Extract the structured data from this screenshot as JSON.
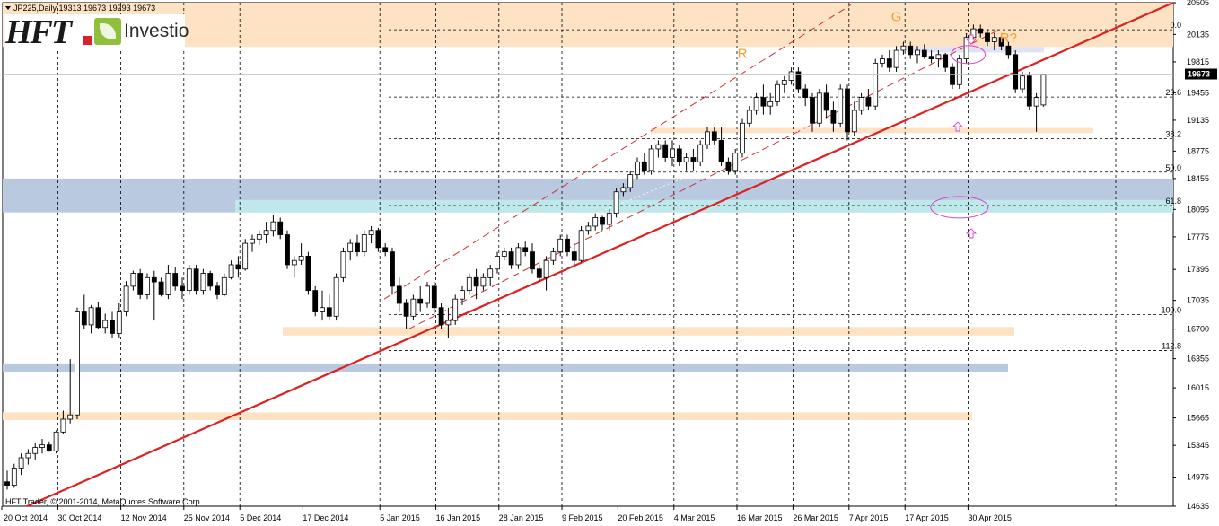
{
  "header": {
    "symbol_line": "JP225,Daily  19313 19673 19293 19673"
  },
  "logo": {
    "mark": "HFT",
    "brand": "Investio"
  },
  "footer": {
    "copyright": "HFT Trader, © 2001-2014, MetaQuotes Software Corp."
  },
  "colors": {
    "bull_body": "#ffffff",
    "bear_body": "#000000",
    "wick": "#000000",
    "trendline": "#e02020",
    "channel": "#d03030",
    "zone_orange": "#fde2c4",
    "zone_blue": "#b8c9e0",
    "zone_cyan": "#bfe8ea",
    "ellipse": "#e040c8",
    "annotation": "#f0a030",
    "grid": "#000000"
  },
  "chart_data": {
    "type": "candlestick",
    "y_axis": {
      "range": [
        14635,
        20505
      ],
      "ticks": [
        "20505",
        "20135",
        "19815",
        "19455",
        "19135",
        "18775",
        "18455",
        "18095",
        "17775",
        "17395",
        "17035",
        "16700",
        "16355",
        "16015",
        "15665",
        "15345",
        "14975",
        "14635"
      ]
    },
    "last_price": "19673",
    "x_axis": {
      "tick_labels": [
        "20 Oct 2014",
        "30 Oct 2014",
        "12 Nov 2014",
        "25 Nov 2014",
        "5 Dec 2014",
        "17 Dec 2014",
        "5 Jan 2015",
        "16 Jan 2015",
        "28 Jan 2015",
        "9 Feb 2015",
        "20 Feb 2015",
        "4 Mar 2015",
        "16 Mar 2015",
        "26 Mar 2015",
        "7 Apr 2015",
        "17 Apr 2015",
        "30 Apr 2015"
      ],
      "tick_bars": [
        0,
        8,
        17,
        26,
        34,
        43,
        54,
        62,
        71,
        80,
        88,
        96,
        105,
        113,
        121,
        129,
        138
      ]
    },
    "candles": [
      [
        14920,
        15050,
        14830,
        14880
      ],
      [
        14880,
        15130,
        14850,
        15080
      ],
      [
        15080,
        15250,
        15000,
        15200
      ],
      [
        15200,
        15300,
        15120,
        15250
      ],
      [
        15250,
        15380,
        15180,
        15320
      ],
      [
        15320,
        15420,
        15250,
        15350
      ],
      [
        15350,
        15390,
        15270,
        15280
      ],
      [
        15280,
        15520,
        15250,
        15500
      ],
      [
        15500,
        15750,
        15480,
        15650
      ],
      [
        15650,
        16350,
        15600,
        15700
      ],
      [
        15700,
        16950,
        15650,
        16900
      ],
      [
        16900,
        17100,
        16700,
        16750
      ],
      [
        16750,
        16980,
        16650,
        16950
      ],
      [
        16950,
        17020,
        16700,
        16720
      ],
      [
        16720,
        16880,
        16650,
        16800
      ],
      [
        16800,
        16900,
        16600,
        16650
      ],
      [
        16650,
        17000,
        16600,
        16900
      ],
      [
        16900,
        17260,
        16850,
        17200
      ],
      [
        17200,
        17380,
        17150,
        17350
      ],
      [
        17350,
        17400,
        17050,
        17100
      ],
      [
        17100,
        17350,
        17050,
        17300
      ],
      [
        17300,
        17380,
        16800,
        17250
      ],
      [
        17250,
        17300,
        17080,
        17100
      ],
      [
        17100,
        17450,
        17050,
        17350
      ],
      [
        17350,
        17420,
        17150,
        17200
      ],
      [
        17200,
        17300,
        17050,
        17150
      ],
      [
        17150,
        17450,
        17100,
        17400
      ],
      [
        17400,
        17450,
        17100,
        17150
      ],
      [
        17150,
        17400,
        17100,
        17350
      ],
      [
        17350,
        17380,
        17150,
        17200
      ],
      [
        17200,
        17250,
        17050,
        17100
      ],
      [
        17100,
        17350,
        17080,
        17300
      ],
      [
        17300,
        17500,
        17280,
        17450
      ],
      [
        17450,
        17550,
        17300,
        17400
      ],
      [
        17400,
        17750,
        17380,
        17700
      ],
      [
        17700,
        17800,
        17600,
        17750
      ],
      [
        17750,
        17850,
        17680,
        17800
      ],
      [
        17800,
        17950,
        17700,
        17850
      ],
      [
        17850,
        18030,
        17780,
        17950
      ],
      [
        17950,
        18000,
        17750,
        17800
      ],
      [
        17800,
        17850,
        17400,
        17450
      ],
      [
        17450,
        17550,
        17300,
        17500
      ],
      [
        17500,
        17700,
        17450,
        17550
      ],
      [
        17550,
        17600,
        17100,
        17150
      ],
      [
        17150,
        17200,
        16850,
        16900
      ],
      [
        16900,
        17150,
        16800,
        16950
      ],
      [
        16950,
        17100,
        16800,
        16850
      ],
      [
        16850,
        17350,
        16800,
        17300
      ],
      [
        17300,
        17650,
        17250,
        17600
      ],
      [
        17600,
        17750,
        17500,
        17700
      ],
      [
        17700,
        17800,
        17550,
        17600
      ],
      [
        17600,
        17850,
        17550,
        17800
      ],
      [
        17800,
        17900,
        17700,
        17850
      ],
      [
        17850,
        17880,
        17600,
        17650
      ],
      [
        17650,
        17700,
        17550,
        17600
      ],
      [
        17600,
        17650,
        17100,
        17200
      ],
      [
        17200,
        17300,
        16900,
        17000
      ],
      [
        17000,
        17050,
        16700,
        16850
      ],
      [
        16850,
        17100,
        16800,
        17050
      ],
      [
        17050,
        17200,
        16900,
        17000
      ],
      [
        17000,
        17250,
        16950,
        17200
      ],
      [
        17200,
        17250,
        16880,
        16950
      ],
      [
        16950,
        17000,
        16700,
        16750
      ],
      [
        16750,
        16950,
        16600,
        16800
      ],
      [
        16800,
        17100,
        16750,
        17050
      ],
      [
        17050,
        17200,
        16980,
        17150
      ],
      [
        17150,
        17350,
        17100,
        17300
      ],
      [
        17300,
        17400,
        17050,
        17200
      ],
      [
        17200,
        17350,
        17150,
        17300
      ],
      [
        17300,
        17450,
        17200,
        17400
      ],
      [
        17400,
        17600,
        17350,
        17550
      ],
      [
        17550,
        17650,
        17500,
        17600
      ],
      [
        17600,
        17650,
        17400,
        17450
      ],
      [
        17450,
        17700,
        17400,
        17650
      ],
      [
        17650,
        17720,
        17550,
        17600
      ],
      [
        17600,
        17700,
        17350,
        17400
      ],
      [
        17400,
        17450,
        17250,
        17300
      ],
      [
        17300,
        17550,
        17150,
        17500
      ],
      [
        17500,
        17650,
        17450,
        17600
      ],
      [
        17600,
        17800,
        17550,
        17750
      ],
      [
        17750,
        17800,
        17550,
        17600
      ],
      [
        17600,
        17700,
        17450,
        17500
      ],
      [
        17500,
        17900,
        17480,
        17850
      ],
      [
        17850,
        17950,
        17800,
        17900
      ],
      [
        17900,
        18050,
        17850,
        18000
      ],
      [
        18000,
        18020,
        17850,
        17920
      ],
      [
        17920,
        18100,
        17850,
        18050
      ],
      [
        18050,
        18350,
        18000,
        18300
      ],
      [
        18300,
        18400,
        18250,
        18350
      ],
      [
        18350,
        18550,
        18300,
        18500
      ],
      [
        18500,
        18700,
        18450,
        18650
      ],
      [
        18650,
        18750,
        18500,
        18550
      ],
      [
        18550,
        18850,
        18500,
        18800
      ],
      [
        18800,
        18900,
        18700,
        18850
      ],
      [
        18850,
        18900,
        18650,
        18700
      ],
      [
        18700,
        18900,
        18600,
        18800
      ],
      [
        18800,
        18850,
        18600,
        18650
      ],
      [
        18650,
        18750,
        18550,
        18700
      ],
      [
        18700,
        18800,
        18550,
        18650
      ],
      [
        18650,
        18900,
        18600,
        18850
      ],
      [
        18850,
        19050,
        18800,
        19000
      ],
      [
        19000,
        19050,
        18850,
        18900
      ],
      [
        18900,
        19050,
        18600,
        18650
      ],
      [
        18650,
        18700,
        18500,
        18550
      ],
      [
        18550,
        18800,
        18500,
        18750
      ],
      [
        18750,
        19150,
        18700,
        19100
      ],
      [
        19100,
        19300,
        19050,
        19250
      ],
      [
        19250,
        19450,
        19200,
        19400
      ],
      [
        19400,
        19550,
        19200,
        19300
      ],
      [
        19300,
        19450,
        19200,
        19350
      ],
      [
        19350,
        19600,
        19300,
        19550
      ],
      [
        19550,
        19650,
        19450,
        19600
      ],
      [
        19600,
        19750,
        19550,
        19700
      ],
      [
        19700,
        19750,
        19450,
        19500
      ],
      [
        19500,
        19550,
        19300,
        19400
      ],
      [
        19400,
        19450,
        19000,
        19100
      ],
      [
        19100,
        19500,
        19050,
        19450
      ],
      [
        19450,
        19550,
        19150,
        19250
      ],
      [
        19250,
        19350,
        19000,
        19100
      ],
      [
        19100,
        19550,
        19050,
        19500
      ],
      [
        19500,
        19550,
        18900,
        19000
      ],
      [
        19000,
        19350,
        18950,
        19250
      ],
      [
        19250,
        19450,
        19200,
        19400
      ],
      [
        19400,
        19500,
        19250,
        19300
      ],
      [
        19300,
        19850,
        19250,
        19800
      ],
      [
        19800,
        19900,
        19750,
        19850
      ],
      [
        19850,
        19950,
        19700,
        19750
      ],
      [
        19750,
        20000,
        19700,
        19950
      ],
      [
        19950,
        20050,
        19900,
        20000
      ],
      [
        20000,
        20050,
        19850,
        19900
      ],
      [
        19900,
        20000,
        19800,
        19950
      ],
      [
        19950,
        20020,
        19850,
        19880
      ],
      [
        19880,
        19950,
        19800,
        19850
      ],
      [
        19850,
        19950,
        19750,
        19900
      ],
      [
        19900,
        19920,
        19700,
        19750
      ],
      [
        19750,
        19800,
        19500,
        19550
      ],
      [
        19550,
        19900,
        19500,
        19850
      ],
      [
        19850,
        20150,
        19800,
        20100
      ],
      [
        20100,
        20250,
        20050,
        20200
      ],
      [
        20200,
        20250,
        20100,
        20150
      ],
      [
        20150,
        20200,
        20000,
        20050
      ],
      [
        20050,
        20150,
        19950,
        20100
      ],
      [
        20100,
        20150,
        19950,
        20000
      ],
      [
        20000,
        20050,
        19850,
        19900
      ],
      [
        19900,
        19950,
        19450,
        19500
      ],
      [
        19500,
        19700,
        19450,
        19650
      ],
      [
        19650,
        19700,
        19250,
        19300
      ],
      [
        19300,
        19450,
        19000,
        19400
      ],
      [
        19313,
        19673,
        19293,
        19673
      ]
    ],
    "fib_levels": [
      {
        "label": "0.0",
        "price": 20190
      },
      {
        "label": "23.6",
        "price": 19405
      },
      {
        "label": "38.2",
        "price": 18920
      },
      {
        "label": "50.0",
        "price": 18530
      },
      {
        "label": "61.8",
        "price": 18140
      },
      {
        "label": "100.0",
        "price": 16870
      },
      {
        "label": "112.8",
        "price": 16450
      }
    ],
    "annotations": [
      {
        "text": "R",
        "bar": 105,
        "price": 19800
      },
      {
        "text": "G",
        "bar": 127,
        "price": 20230
      },
      {
        "text": "R?",
        "bar": 143,
        "price": 19980
      }
    ]
  }
}
